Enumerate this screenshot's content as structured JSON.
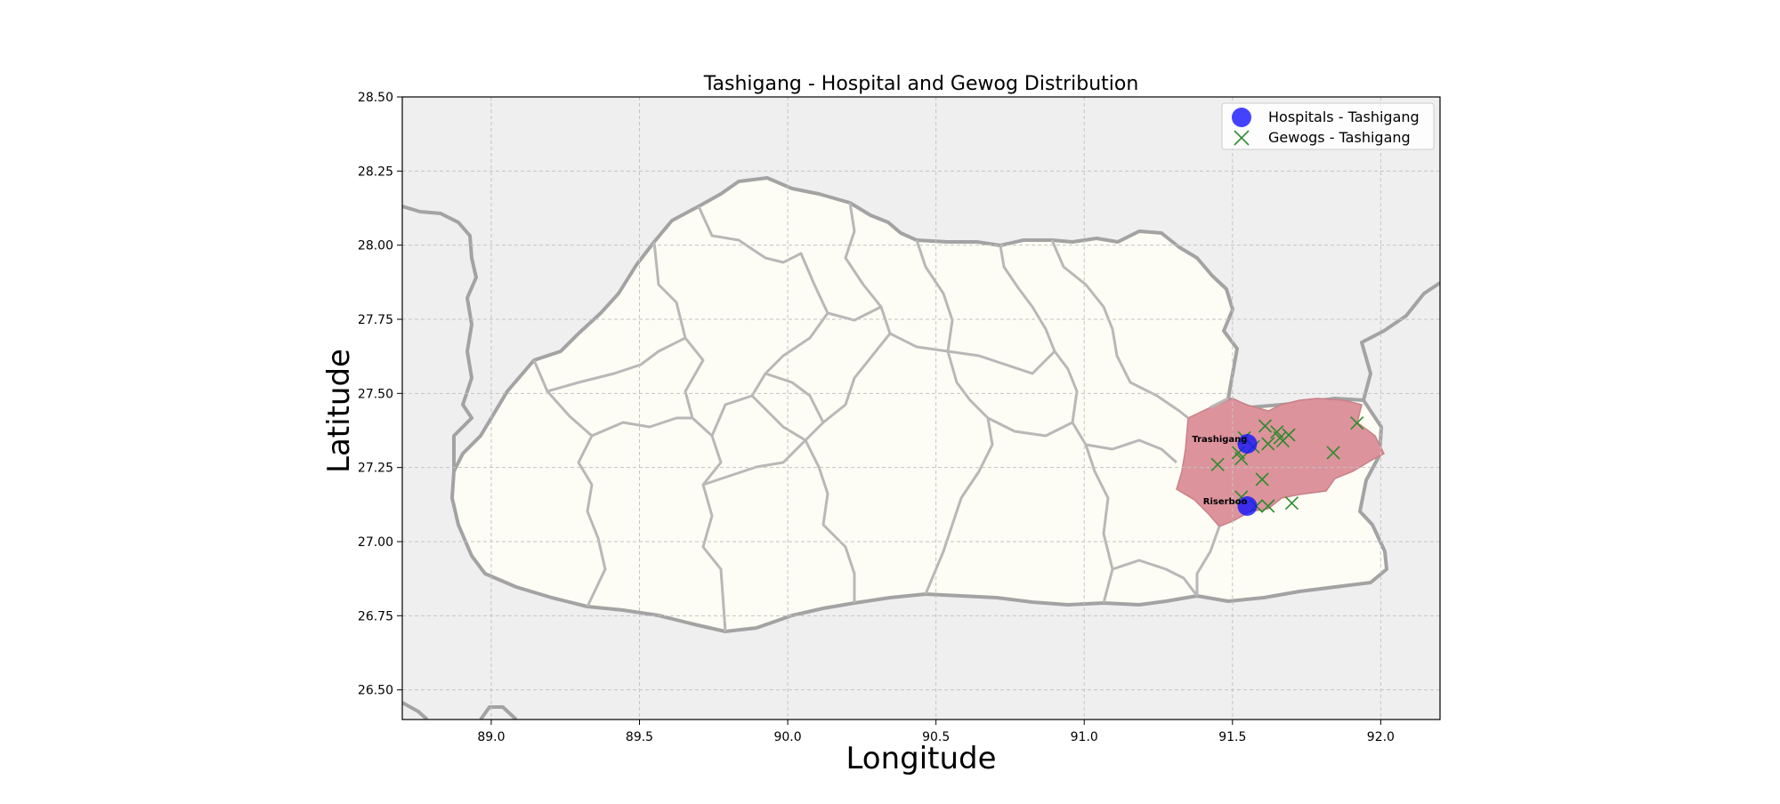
{
  "figure": {
    "title": "Tashigang - Hospital and Gewog Distribution",
    "xlabel": "Longitude",
    "ylabel": "Latitude"
  },
  "legend": {
    "placement": "top-right",
    "hospitals_label": "Hospitals - Tashigang",
    "gewogs_label": "Gewogs - Tashigang"
  },
  "colors": {
    "ocean_background": "#efefef",
    "country_fill": "#fdfdf5",
    "border_stroke": "#a3a3a3",
    "district_fill": "#dd939c",
    "hospital_marker": "#1414ff",
    "gewog_marker": "#2e8b2e",
    "grid": "#c4c4c4"
  },
  "chart_data": {
    "type": "scatter",
    "title": "Tashigang - Hospital and Gewog Distribution",
    "xlabel": "Longitude",
    "ylabel": "Latitude",
    "xlim": [
      88.7,
      92.2
    ],
    "ylim": [
      26.4,
      28.5
    ],
    "grid": true,
    "legend_placement": "top-right",
    "xticks": [
      "89.0",
      "89.5",
      "90.0",
      "90.5",
      "91.0",
      "91.5",
      "92.0"
    ],
    "yticks": [
      "26.50",
      "26.75",
      "27.00",
      "27.25",
      "27.50",
      "27.75",
      "28.00",
      "28.25",
      "28.50"
    ],
    "series": [
      {
        "name": "Hospitals - Tashigang",
        "marker": "circle",
        "points": [
          {
            "lon": 91.55,
            "lat": 27.33,
            "label": "Trashigang"
          },
          {
            "lon": 91.55,
            "lat": 27.12,
            "label": "Riserboo"
          }
        ]
      },
      {
        "name": "Gewogs - Tashigang",
        "marker": "x",
        "points": [
          {
            "lon": 91.92,
            "lat": 27.4
          },
          {
            "lon": 91.61,
            "lat": 27.39
          },
          {
            "lon": 91.65,
            "lat": 27.37
          },
          {
            "lon": 91.69,
            "lat": 27.36
          },
          {
            "lon": 91.54,
            "lat": 27.35
          },
          {
            "lon": 91.66,
            "lat": 27.35
          },
          {
            "lon": 91.67,
            "lat": 27.34
          },
          {
            "lon": 91.62,
            "lat": 27.33
          },
          {
            "lon": 91.57,
            "lat": 27.32
          },
          {
            "lon": 91.52,
            "lat": 27.3
          },
          {
            "lon": 91.84,
            "lat": 27.3
          },
          {
            "lon": 91.53,
            "lat": 27.28
          },
          {
            "lon": 91.45,
            "lat": 27.26
          },
          {
            "lon": 91.6,
            "lat": 27.21
          },
          {
            "lon": 91.53,
            "lat": 27.15
          },
          {
            "lon": 91.7,
            "lat": 27.13
          },
          {
            "lon": 91.58,
            "lat": 27.12
          },
          {
            "lon": 91.62,
            "lat": 27.12
          }
        ]
      }
    ]
  }
}
